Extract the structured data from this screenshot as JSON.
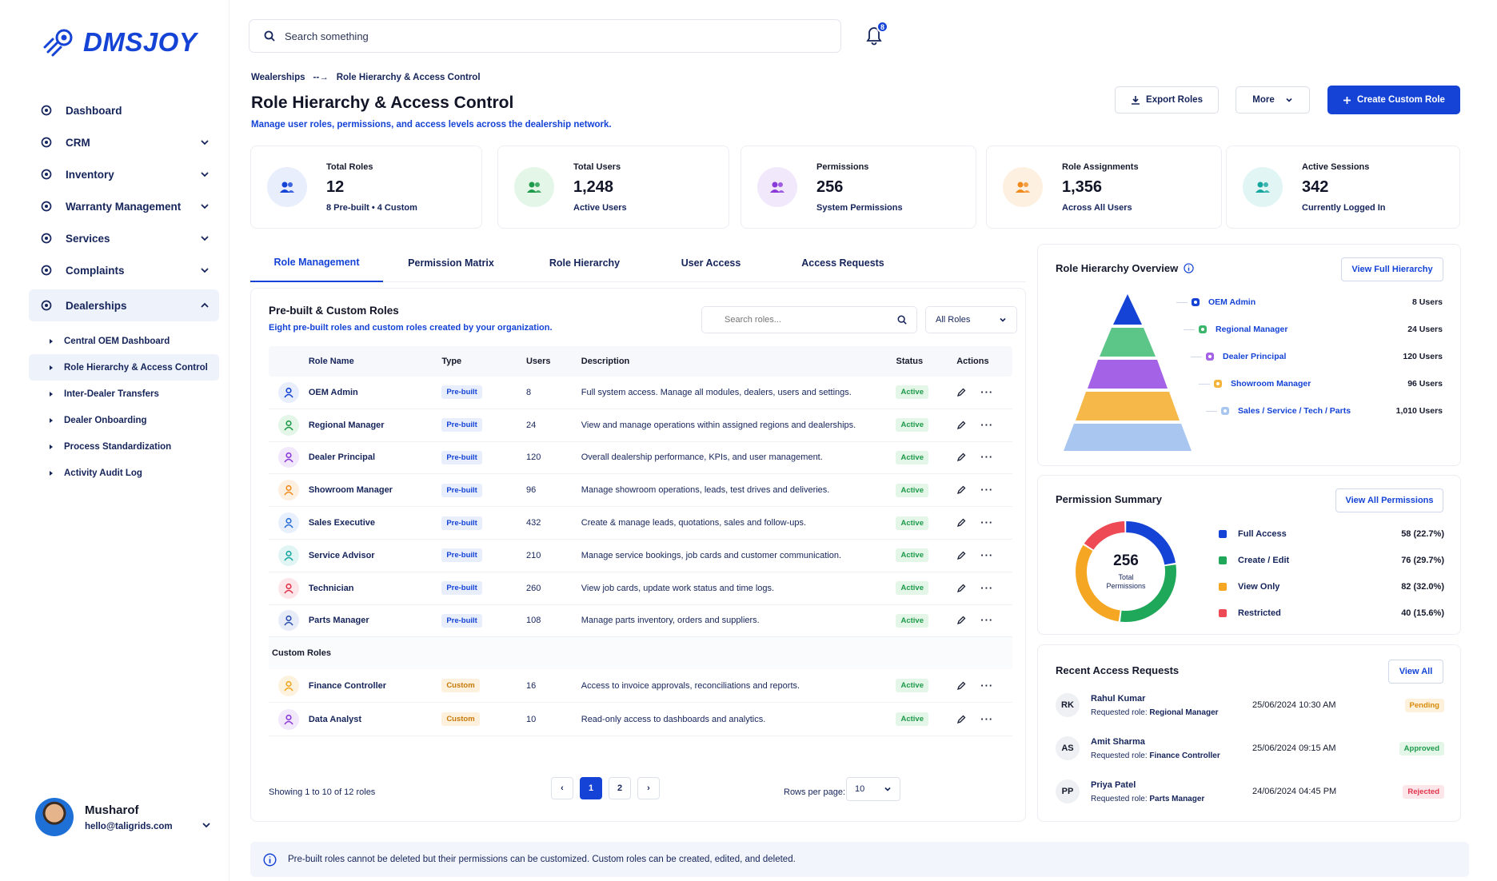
{
  "brand": {
    "name": "DMSJOY"
  },
  "sidebar": {
    "items": [
      {
        "label": "Dashboard",
        "icon": "dashboard-icon",
        "expandable": false
      },
      {
        "label": "CRM",
        "icon": "crm-icon",
        "expandable": true
      },
      {
        "label": "Inventory",
        "icon": "inventory-icon",
        "expandable": true
      },
      {
        "label": "Warranty Management",
        "icon": "warranty-icon",
        "expandable": true
      },
      {
        "label": "Services",
        "icon": "services-icon",
        "expandable": true
      },
      {
        "label": "Complaints",
        "icon": "complaints-icon",
        "expandable": true
      },
      {
        "label": "Dealerships",
        "icon": "dealerships-icon",
        "expandable": true,
        "active": true
      }
    ],
    "subitems": [
      "Central OEM Dashboard",
      "Role Hierarchy & Access Control",
      "Inter-Dealer Transfers",
      "Dealer Onboarding",
      "Process Standardization",
      "Activity Audit Log"
    ],
    "active_sub": 1
  },
  "user": {
    "name": "Musharof",
    "email": "hello@taligrids.com"
  },
  "header": {
    "search_placeholder": "Search something",
    "notifications": "8"
  },
  "breadcrumb": {
    "parent": "Wealerships",
    "arrow": "--→",
    "current": "Role Hierarchy & Access Control"
  },
  "page": {
    "title": "Role Hierarchy & Access Control",
    "subtitle": "Manage user roles, permissions, and access levels across the dealership network."
  },
  "actions": {
    "export": "Export Roles",
    "more": "More",
    "create": "Create Custom Role"
  },
  "stats": [
    {
      "label": "Total Roles",
      "value": "12",
      "sub": "8 Pre-built  •  4 Custom",
      "color": "#1443d6",
      "bg": "#e9eefc",
      "icon": "users-icon"
    },
    {
      "label": "Total Users",
      "value": "1,248",
      "sub": "Active Users",
      "color": "#1d9a4a",
      "bg": "#e3f6e8",
      "icon": "grid-users-icon"
    },
    {
      "label": "Permissions",
      "value": "256",
      "sub": "System Permissions",
      "color": "#8a3ad8",
      "bg": "#f1e8fc",
      "icon": "lock-icon"
    },
    {
      "label": "Role Assignments",
      "value": "1,356",
      "sub": "Across All Users",
      "color": "#f08a1c",
      "bg": "#fdf0e0",
      "icon": "group-icon"
    },
    {
      "label": "Active Sessions",
      "value": "342",
      "sub": "Currently Logged In",
      "color": "#16a6a0",
      "bg": "#e1f5f4",
      "icon": "shield-check-icon"
    }
  ],
  "tabs": [
    "Role Management",
    "Permission Matrix",
    "Role Hierarchy",
    "User Access",
    "Access Requests"
  ],
  "roles_panel": {
    "title": "Pre-built & Custom Roles",
    "subtitle": "Eight pre-built roles and custom roles created by your organization.",
    "search_placeholder": "Search roles...",
    "filter": "All Roles",
    "columns": [
      "Role Name",
      "Type",
      "Users",
      "Description",
      "Status",
      "Actions"
    ],
    "prebuilt": [
      {
        "name": "OEM Admin",
        "type": "Pre-built",
        "users": "8",
        "desc": "Full system access. Manage all modules, dealers, users and settings.",
        "status": "Active",
        "color": "#1443d6",
        "bg": "#e9eefc"
      },
      {
        "name": "Regional Manager",
        "type": "Pre-built",
        "users": "24",
        "desc": "View and manage operations within assigned regions and dealerships.",
        "status": "Active",
        "color": "#1d9a4a",
        "bg": "#e3f6e8"
      },
      {
        "name": "Dealer Principal",
        "type": "Pre-built",
        "users": "120",
        "desc": "Overall dealership performance, KPIs, and user management.",
        "status": "Active",
        "color": "#8a3ad8",
        "bg": "#f1e8fc"
      },
      {
        "name": "Showroom Manager",
        "type": "Pre-built",
        "users": "96",
        "desc": "Manage showroom operations, leads, test drives and deliveries.",
        "status": "Active",
        "color": "#f08a1c",
        "bg": "#fdf0e0"
      },
      {
        "name": "Sales Executive",
        "type": "Pre-built",
        "users": "432",
        "desc": "Create & manage leads, quotations, sales and follow-ups.",
        "status": "Active",
        "color": "#2a6fd6",
        "bg": "#e7f0fc"
      },
      {
        "name": "Service Advisor",
        "type": "Pre-built",
        "users": "210",
        "desc": "Manage service bookings, job cards and customer communication.",
        "status": "Active",
        "color": "#16a6a0",
        "bg": "#e1f5f4"
      },
      {
        "name": "Technician",
        "type": "Pre-built",
        "users": "260",
        "desc": "View job cards, update work status and time logs.",
        "status": "Active",
        "color": "#e0334a",
        "bg": "#fde6ea"
      },
      {
        "name": "Parts Manager",
        "type": "Pre-built",
        "users": "108",
        "desc": "Manage parts inventory, orders and suppliers.",
        "status": "Active",
        "color": "#2a4fb0",
        "bg": "#e7ecf8"
      }
    ],
    "custom_label": "Custom Roles",
    "custom": [
      {
        "name": "Finance Controller",
        "type": "Custom",
        "users": "16",
        "desc": "Access to invoice approvals, reconciliations and reports.",
        "status": "Active",
        "color": "#f0a51c",
        "bg": "#fdf2de"
      },
      {
        "name": "Data Analyst",
        "type": "Custom",
        "users": "10",
        "desc": "Read-only access to dashboards and analytics.",
        "status": "Active",
        "color": "#8a3ad8",
        "bg": "#f1e8fc"
      }
    ],
    "showing": "Showing 1 to 10 of 12 roles",
    "pages": [
      "1",
      "2"
    ],
    "prev": "‹",
    "next": "›",
    "rows_label": "Rows per page:",
    "rows_value": "10"
  },
  "hierarchy": {
    "title": "Role Hierarchy Overview",
    "button": "View Full Hierarchy",
    "levels": [
      {
        "name": "OEM Admin",
        "count": "8 Users",
        "color": "#1443d6"
      },
      {
        "name": "Regional Manager",
        "count": "24 Users",
        "color": "#3bb56b"
      },
      {
        "name": "Dealer Principal",
        "count": "120 Users",
        "color": "#a463e6"
      },
      {
        "name": "Showroom Manager",
        "count": "96 Users",
        "color": "#f5b43a"
      },
      {
        "name": "Sales / Service / Tech / Parts",
        "count": "1,010 Users",
        "color": "#a8c6f0"
      }
    ]
  },
  "permission_summary": {
    "title": "Permission Summary",
    "button": "View All Permissions",
    "total": "256",
    "total_label": "Total Permissions",
    "items": [
      {
        "name": "Full Access",
        "count": 58,
        "value": "58 (22.7%)",
        "color": "#1443d6"
      },
      {
        "name": "Create / Edit",
        "count": 76,
        "value": "76 (29.7%)",
        "color": "#1fa85a"
      },
      {
        "name": "View Only",
        "count": 82,
        "value": "82 (32.0%)",
        "color": "#f5a623"
      },
      {
        "name": "Restricted",
        "count": 40,
        "value": "40 (15.6%)",
        "color": "#ee4a55"
      }
    ]
  },
  "requests": {
    "title": "Recent Access Requests",
    "button": "View All",
    "items": [
      {
        "initials": "RK",
        "name": "Rahul Kumar",
        "role_prefix": "Requested role:",
        "role": "Regional Manager",
        "date": "25/06/2024 10:30 AM",
        "status": "Pending",
        "color": "#d98a08",
        "bg": "#fdf1dc"
      },
      {
        "initials": "AS",
        "name": "Amit Sharma",
        "role_prefix": "Requested role:",
        "role": "Finance Controller",
        "date": "25/06/2024 09:15 AM",
        "status": "Approved",
        "color": "#1d9a4a",
        "bg": "#e3f6e8"
      },
      {
        "initials": "PP",
        "name": "Priya Patel",
        "role_prefix": "Requested role:",
        "role": "Parts Manager",
        "date": "24/06/2024 04:45 PM",
        "status": "Rejected",
        "color": "#e0334a",
        "bg": "#fde6ea"
      }
    ]
  },
  "note": "Pre-built roles cannot be deleted but their permissions can be customized. Custom roles can be created, edited, and deleted."
}
